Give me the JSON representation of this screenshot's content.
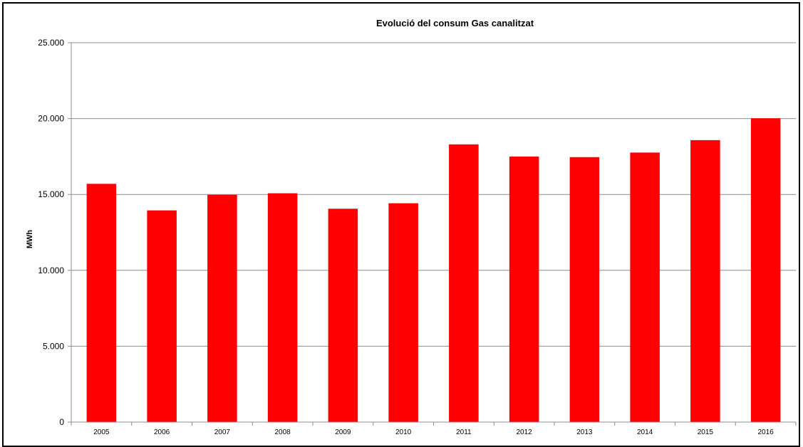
{
  "chart_data": {
    "type": "bar",
    "title": "Evolució del consum Gas canalitzat",
    "xlabel": "",
    "ylabel": "MWh",
    "categories": [
      "2005",
      "2006",
      "2007",
      "2008",
      "2009",
      "2010",
      "2011",
      "2012",
      "2013",
      "2014",
      "2015",
      "2016"
    ],
    "values": [
      15700,
      13950,
      14980,
      15080,
      14060,
      14420,
      18300,
      17500,
      17460,
      17760,
      18580,
      20020
    ],
    "ylim": [
      0,
      25000
    ],
    "yticks": [
      "0",
      "5.000",
      "10.000",
      "15.000",
      "20.000",
      "25.000"
    ],
    "grid": true,
    "legend": "none",
    "colors": {
      "bar": "#ff0000",
      "grid": "#8c8c8c",
      "axis": "#8c8c8c"
    }
  }
}
